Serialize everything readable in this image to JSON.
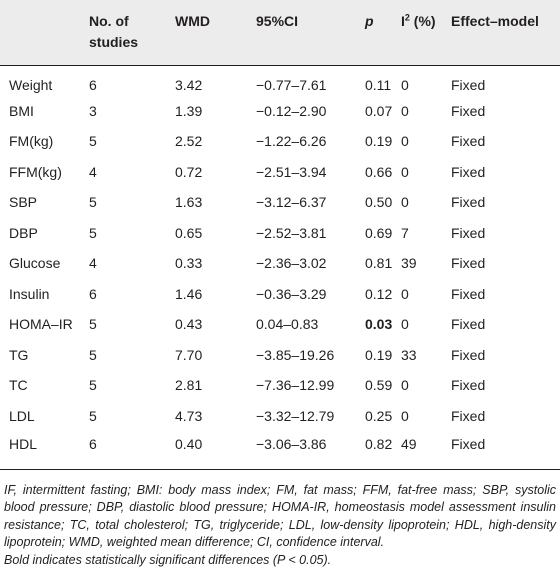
{
  "table": {
    "headers": {
      "variable": "",
      "n_studies": "No. of studies",
      "wmd": "WMD",
      "ci": "95%CI",
      "p": "p",
      "i2_base": "I",
      "i2_sup": "2",
      "i2_rest": " (%)",
      "effect_model": "Effect–model"
    },
    "rows": [
      {
        "variable": "Weight",
        "n": "6",
        "wmd": "3.42",
        "ci": "−0.77–7.61",
        "p": "0.11",
        "i2": "0",
        "model": "Fixed",
        "p_bold": false
      },
      {
        "variable": "BMI",
        "n": "3",
        "wmd": "1.39",
        "ci": "−0.12–2.90",
        "p": "0.07",
        "i2": "0",
        "model": "Fixed",
        "p_bold": false
      },
      {
        "variable": "FM(kg)",
        "n": "5",
        "wmd": "2.52",
        "ci": "−1.22–6.26",
        "p": "0.19",
        "i2": "0",
        "model": "Fixed",
        "p_bold": false
      },
      {
        "variable": "FFM(kg)",
        "n": "4",
        "wmd": "0.72",
        "ci": "−2.51–3.94",
        "p": "0.66",
        "i2": "0",
        "model": "Fixed",
        "p_bold": false
      },
      {
        "variable": "SBP",
        "n": "5",
        "wmd": "1.63",
        "ci": "−3.12–6.37",
        "p": "0.50",
        "i2": "0",
        "model": "Fixed",
        "p_bold": false
      },
      {
        "variable": "DBP",
        "n": "5",
        "wmd": "0.65",
        "ci": "−2.52–3.81",
        "p": "0.69",
        "i2": "7",
        "model": "Fixed",
        "p_bold": false
      },
      {
        "variable": "Glucose",
        "n": "4",
        "wmd": "0.33",
        "ci": "−2.36–3.02",
        "p": "0.81",
        "i2": "39",
        "model": "Fixed",
        "p_bold": false
      },
      {
        "variable": "Insulin",
        "n": "6",
        "wmd": "1.46",
        "ci": "−0.36–3.29",
        "p": "0.12",
        "i2": "0",
        "model": "Fixed",
        "p_bold": false
      },
      {
        "variable": "HOMA–IR",
        "n": "5",
        "wmd": "0.43",
        "ci": "0.04–0.83",
        "p": "0.03",
        "i2": "0",
        "model": "Fixed",
        "p_bold": true
      },
      {
        "variable": "TG",
        "n": "5",
        "wmd": "7.70",
        "ci": "−3.85–19.26",
        "p": "0.19",
        "i2": "33",
        "model": "Fixed",
        "p_bold": false
      },
      {
        "variable": "TC",
        "n": "5",
        "wmd": "2.81",
        "ci": "−7.36–12.99",
        "p": "0.59",
        "i2": "0",
        "model": "Fixed",
        "p_bold": false
      },
      {
        "variable": "LDL",
        "n": "5",
        "wmd": "4.73",
        "ci": "−3.32–12.79",
        "p": "0.25",
        "i2": "0",
        "model": "Fixed",
        "p_bold": false
      },
      {
        "variable": "HDL",
        "n": "6",
        "wmd": "0.40",
        "ci": "−3.06–3.86",
        "p": "0.82",
        "i2": "49",
        "model": "Fixed",
        "p_bold": false
      }
    ]
  },
  "footnote": {
    "abbreviations": "IF, intermittent fasting; BMI: body mass index; FM, fat mass; FFM, fat-free mass; SBP, systolic blood pressure; DBP, diastolic blood pressure; HOMA-IR, homeostasis model assessment insulin resistance; TC, total cholesterol; TG, triglyceride; LDL, low-density lipoprotein; HDL, high-density lipoprotein; WMD, weighted mean difference; CI, confidence interval.",
    "significance": "Bold indicates statistically significant differences (P < 0.05)."
  }
}
